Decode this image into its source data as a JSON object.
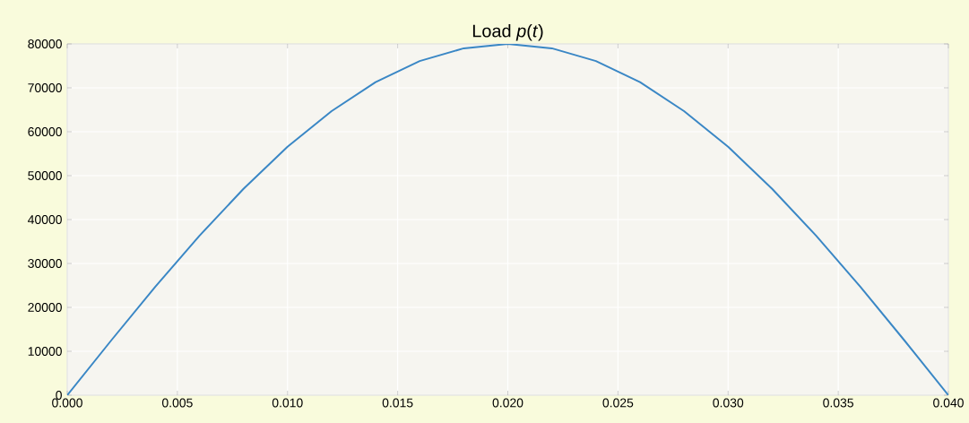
{
  "chart_data": {
    "type": "line",
    "title": "Load *p*(*t*)",
    "x": [
      0,
      0.002,
      0.004,
      0.006,
      0.008,
      0.01,
      0.012,
      0.014,
      0.016,
      0.018,
      0.02,
      0.022,
      0.024,
      0.026,
      0.028,
      0.03,
      0.032,
      0.034,
      0.036,
      0.038,
      0.04
    ],
    "series": [
      {
        "color": "#3a87c5",
        "values": [
          0,
          12500,
          24700,
          36300,
          47000,
          56600,
          64700,
          71300,
          76100,
          79000,
          80000,
          79000,
          76100,
          71300,
          64700,
          56600,
          47000,
          36300,
          24700,
          12500,
          0
        ]
      }
    ],
    "xlim": [
      0,
      0.04
    ],
    "ylim": [
      0,
      80000
    ],
    "xticks": [
      {
        "value": 0,
        "label": "0.000"
      },
      {
        "value": 0.005,
        "label": "0.005"
      },
      {
        "value": 0.01,
        "label": "0.010"
      },
      {
        "value": 0.015,
        "label": "0.015"
      },
      {
        "value": 0.02,
        "label": "0.020"
      },
      {
        "value": 0.025,
        "label": "0.025"
      },
      {
        "value": 0.03,
        "label": "0.030"
      },
      {
        "value": 0.035,
        "label": "0.035"
      },
      {
        "value": 0.04,
        "label": "0.040"
      }
    ],
    "yticks": [
      0,
      10000,
      20000,
      30000,
      40000,
      50000,
      60000,
      70000,
      80000
    ],
    "grid": true,
    "marker": "none",
    "line_style": "solid"
  }
}
